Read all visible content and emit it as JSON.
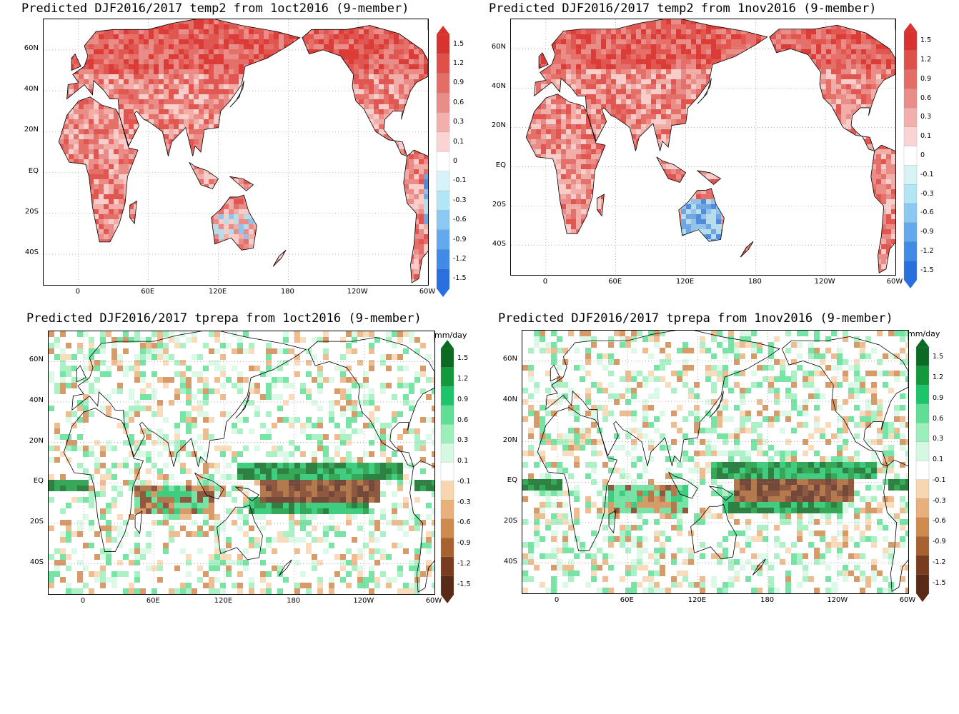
{
  "panels": [
    {
      "title": "Predicted DJF2016/2017 temp2 from 1oct2016 (9-member)",
      "variable": "temp2",
      "unit": "",
      "colorbar": {
        "labels": [
          "1.5",
          "1.2",
          "0.9",
          "0.6",
          "0.3",
          "0.1",
          "0",
          "-0.1",
          "-0.3",
          "-0.6",
          "-0.9",
          "-1.2",
          "-1.5"
        ],
        "colors": [
          "#d9332f",
          "#e0504a",
          "#e46d67",
          "#ea8c87",
          "#f2b0ac",
          "#f9d4d2",
          "#ffffff",
          "#d8f3f7",
          "#b3e6f5",
          "#8cc9f2",
          "#62a9ee",
          "#3f8be6",
          "#2a6fe0"
        ]
      }
    },
    {
      "title": "Predicted DJF2016/2017 temp2 from 1nov2016 (9-member)",
      "variable": "temp2",
      "unit": "",
      "colorbar": {
        "labels": [
          "1.5",
          "1.2",
          "0.9",
          "0.6",
          "0.3",
          "0.1",
          "0",
          "-0.1",
          "-0.3",
          "-0.6",
          "-0.9",
          "-1.2",
          "-1.5"
        ],
        "colors": [
          "#d9332f",
          "#e0504a",
          "#e46d67",
          "#ea8c87",
          "#f2b0ac",
          "#f9d4d2",
          "#ffffff",
          "#d8f3f7",
          "#b3e6f5",
          "#8cc9f2",
          "#62a9ee",
          "#3f8be6",
          "#2a6fe0"
        ]
      }
    },
    {
      "title": "Predicted DJF2016/2017 tprepa from 1oct2016 (9-member)",
      "variable": "tprepa",
      "unit": "mm/day",
      "colorbar": {
        "labels": [
          "1.5",
          "1.2",
          "0.9",
          "0.6",
          "0.3",
          "0.1",
          "-0.1",
          "-0.3",
          "-0.6",
          "-0.9",
          "-1.2",
          "-1.5"
        ],
        "colors": [
          "#0b6b22",
          "#129a3a",
          "#1ec46a",
          "#5fdf96",
          "#9cefbb",
          "#d5f8e2",
          "#ffffff",
          "#f7d6b0",
          "#eab07c",
          "#cf8a4e",
          "#a8622f",
          "#7a3c1e",
          "#5a2a18"
        ]
      }
    },
    {
      "title": "Predicted DJF2016/2017 tprepa from 1nov2016 (9-member)",
      "variable": "tprepa",
      "unit": "mm/day",
      "colorbar": {
        "labels": [
          "1.5",
          "1.2",
          "0.9",
          "0.6",
          "0.3",
          "0.1",
          "-0.1",
          "-0.3",
          "-0.6",
          "-0.9",
          "-1.2",
          "-1.5"
        ],
        "colors": [
          "#0b6b22",
          "#129a3a",
          "#1ec46a",
          "#5fdf96",
          "#9cefbb",
          "#d5f8e2",
          "#ffffff",
          "#f7d6b0",
          "#eab07c",
          "#cf8a4e",
          "#a8622f",
          "#7a3c1e",
          "#5a2a18"
        ]
      }
    }
  ],
  "lat_labels": [
    "60N",
    "40N",
    "20N",
    "EQ",
    "20S",
    "40S"
  ],
  "lon_labels": [
    "0",
    "60E",
    "120E",
    "180",
    "120W",
    "60W"
  ]
}
